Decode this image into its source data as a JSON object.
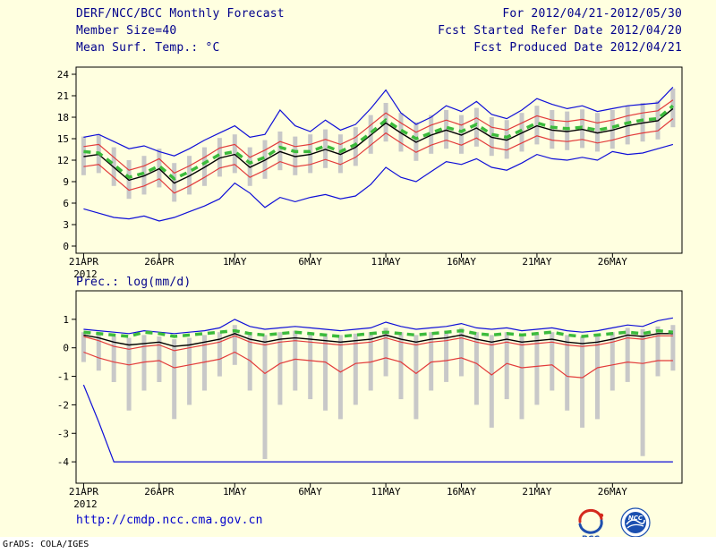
{
  "header": {
    "title_left": "DERF/NCC/BCC Monthly Forecast",
    "member_size": "Member Size=40",
    "for_range": "For 2012/04/21-2012/05/30",
    "fcst_started": "Fcst Started Refer Date 2012/04/20",
    "fcst_produced": "Fcst Produced Date 2012/04/21"
  },
  "footer": {
    "link": "http://cmdp.ncc.cma.gov.cn",
    "grads_credit": "GrADS: COLA/IGES",
    "bcc_logo_text": "BCC",
    "ncc_logo_text": "NCC"
  },
  "colors": {
    "background": "#ffffe0",
    "header_text": "#00008b",
    "link": "#0000cc",
    "envelope_blue": "#0f0fd8",
    "quartile_red": "#e23b3b",
    "mean_black": "#000000",
    "climatology_green": "#3cbb3c",
    "range_bar_gray": "#c8c8c8",
    "frame": "#000000"
  },
  "chart_data": [
    {
      "name": "temperature-forecast-chart",
      "type": "line",
      "title": "Mean Surf. Temp.: °C",
      "x_tick_labels": [
        "21APR",
        "26APR",
        "1MAY",
        "6MAY",
        "11MAY",
        "16MAY",
        "21MAY",
        "26MAY"
      ],
      "x_tick_days": [
        0,
        5,
        10,
        15,
        20,
        25,
        30,
        35
      ],
      "x_year_label": "2012",
      "n_points": 40,
      "xlim": [
        -0.5,
        39.6
      ],
      "ylim": [
        -1,
        25
      ],
      "yticks": [
        0,
        3,
        6,
        9,
        12,
        15,
        18,
        21,
        24
      ],
      "bars": {
        "color": "#c8c8c8",
        "low": [
          9.9,
          10.2,
          8.4,
          6.6,
          7.2,
          8.2,
          6.2,
          7.2,
          8.4,
          9.7,
          10.2,
          8.4,
          9.4,
          10.6,
          9.9,
          10.2,
          10.9,
          10.2,
          11.2,
          12.9,
          14.6,
          13.2,
          11.9,
          12.9,
          13.6,
          12.9,
          13.9,
          12.6,
          12.2,
          13.2,
          14.2,
          13.6,
          13.4,
          13.7,
          13.2,
          13.6,
          14.2,
          14.6,
          14.9,
          16.6
        ],
        "high": [
          15.3,
          15.6,
          13.8,
          12.0,
          12.6,
          13.6,
          11.6,
          12.6,
          13.8,
          15.1,
          15.6,
          13.8,
          14.8,
          16.0,
          15.3,
          15.6,
          16.3,
          15.6,
          16.6,
          18.3,
          20.0,
          18.6,
          17.3,
          18.3,
          19.0,
          18.3,
          19.3,
          18.0,
          17.6,
          18.6,
          19.6,
          19.0,
          18.8,
          19.1,
          18.6,
          19.0,
          19.6,
          20.0,
          20.3,
          22.0
        ]
      },
      "series": [
        {
          "name": "ensemble-max-line",
          "color": "#0f0fd8",
          "width": 1.2,
          "values": [
            15.2,
            15.6,
            14.6,
            13.6,
            14.0,
            13.2,
            12.6,
            13.6,
            14.8,
            15.8,
            16.8,
            15.2,
            15.6,
            19.0,
            16.8,
            16.0,
            17.6,
            16.2,
            17.0,
            19.2,
            21.8,
            18.6,
            17.0,
            18.0,
            19.6,
            18.8,
            20.2,
            18.4,
            17.8,
            19.0,
            20.6,
            19.8,
            19.2,
            19.6,
            18.8,
            19.2,
            19.6,
            19.8,
            20.0,
            22.2
          ]
        },
        {
          "name": "ensemble-min-line",
          "color": "#0f0fd8",
          "width": 1.2,
          "values": [
            5.2,
            4.6,
            4.0,
            3.8,
            4.2,
            3.5,
            4.0,
            4.8,
            5.6,
            6.6,
            8.8,
            7.4,
            5.4,
            6.8,
            6.2,
            6.8,
            7.2,
            6.6,
            7.0,
            8.6,
            11.0,
            9.6,
            9.0,
            10.4,
            11.8,
            11.4,
            12.2,
            11.0,
            10.6,
            11.6,
            12.8,
            12.2,
            12.0,
            12.4,
            12.0,
            13.2,
            12.8,
            13.0,
            13.6,
            14.2
          ]
        },
        {
          "name": "upper-quartile-line",
          "color": "#e23b3b",
          "width": 1.2,
          "values": [
            13.9,
            14.2,
            12.4,
            10.6,
            11.2,
            12.2,
            10.2,
            11.2,
            12.4,
            13.7,
            14.2,
            12.4,
            13.4,
            14.6,
            13.9,
            14.2,
            14.9,
            14.2,
            15.2,
            16.9,
            18.6,
            17.2,
            15.9,
            16.9,
            17.6,
            16.9,
            17.9,
            16.6,
            16.2,
            17.2,
            18.2,
            17.6,
            17.4,
            17.7,
            17.2,
            17.6,
            18.2,
            18.6,
            18.9,
            20.4
          ]
        },
        {
          "name": "lower-quartile-line",
          "color": "#e23b3b",
          "width": 1.2,
          "values": [
            11.1,
            11.4,
            9.6,
            7.8,
            8.4,
            9.4,
            7.4,
            8.4,
            9.6,
            10.9,
            11.4,
            9.6,
            10.6,
            11.8,
            11.1,
            11.4,
            12.1,
            11.4,
            12.4,
            14.1,
            15.8,
            14.4,
            13.1,
            14.1,
            14.8,
            14.1,
            15.1,
            13.8,
            13.4,
            14.4,
            15.4,
            14.8,
            14.6,
            14.9,
            14.4,
            14.8,
            15.4,
            15.8,
            16.1,
            17.8
          ]
        },
        {
          "name": "ensemble-mean-line",
          "color": "#000000",
          "width": 1.4,
          "values": [
            12.5,
            12.8,
            11.0,
            9.2,
            9.8,
            10.8,
            8.8,
            9.8,
            11.0,
            12.3,
            12.8,
            11.0,
            12.0,
            13.2,
            12.5,
            12.8,
            13.5,
            12.8,
            13.8,
            15.5,
            17.2,
            15.8,
            14.5,
            15.5,
            16.2,
            15.5,
            16.5,
            15.2,
            14.8,
            15.8,
            16.8,
            16.2,
            16.0,
            16.3,
            15.8,
            16.2,
            16.8,
            17.2,
            17.5,
            19.2
          ]
        },
        {
          "name": "climatology-dashed-line",
          "color": "#3cbb3c",
          "width": 3.5,
          "dash": "8,6",
          "values": [
            13.2,
            13.0,
            11.4,
            9.6,
            10.2,
            11.2,
            9.4,
            10.4,
            11.6,
            12.8,
            13.2,
            11.6,
            12.4,
            13.8,
            13.2,
            13.2,
            14.0,
            13.2,
            14.2,
            15.8,
            17.6,
            16.2,
            15.0,
            15.8,
            16.6,
            16.0,
            17.0,
            15.6,
            15.2,
            16.2,
            17.2,
            16.6,
            16.4,
            16.6,
            16.2,
            16.6,
            17.2,
            17.6,
            17.8,
            19.6
          ]
        }
      ]
    },
    {
      "name": "precipitation-forecast-chart",
      "type": "line",
      "title": "Prec.: log(mm/d)",
      "x_tick_labels": [
        "21APR",
        "26APR",
        "1MAY",
        "6MAY",
        "11MAY",
        "16MAY",
        "21MAY",
        "26MAY"
      ],
      "x_tick_days": [
        0,
        5,
        10,
        15,
        20,
        25,
        30,
        35
      ],
      "x_year_label": "2012",
      "n_points": 40,
      "xlim": [
        -0.5,
        39.6
      ],
      "ylim": [
        -4.75,
        2.0
      ],
      "yticks": [
        1,
        0,
        -1,
        -2,
        -3,
        -4
      ],
      "bars": {
        "color": "#c8c8c8",
        "low": [
          -0.5,
          -0.8,
          -1.2,
          -2.2,
          -1.5,
          -1.2,
          -2.5,
          -2.0,
          -1.5,
          -1.0,
          -0.6,
          -1.5,
          -3.9,
          -2.0,
          -1.5,
          -1.8,
          -2.2,
          -2.5,
          -2.0,
          -1.5,
          -1.0,
          -1.8,
          -2.5,
          -1.5,
          -1.2,
          -1.0,
          -2.0,
          -2.8,
          -1.8,
          -2.5,
          -2.0,
          -1.5,
          -2.2,
          -2.8,
          -2.5,
          -1.5,
          -1.2,
          -3.8,
          -1.0,
          -0.8
        ],
        "high": [
          0.55,
          0.5,
          0.4,
          0.35,
          0.45,
          0.4,
          0.3,
          0.35,
          0.45,
          0.55,
          0.8,
          0.55,
          0.45,
          0.55,
          0.6,
          0.55,
          0.5,
          0.45,
          0.5,
          0.55,
          0.7,
          0.55,
          0.45,
          0.55,
          0.6,
          0.7,
          0.55,
          0.45,
          0.55,
          0.45,
          0.5,
          0.55,
          0.45,
          0.4,
          0.45,
          0.55,
          0.7,
          0.65,
          0.75,
          0.8
        ]
      },
      "series": [
        {
          "name": "ensemble-max-line",
          "color": "#0f0fd8",
          "width": 1.2,
          "values": [
            0.65,
            0.6,
            0.55,
            0.5,
            0.6,
            0.55,
            0.5,
            0.55,
            0.6,
            0.7,
            1.0,
            0.75,
            0.65,
            0.7,
            0.75,
            0.7,
            0.65,
            0.6,
            0.65,
            0.7,
            0.9,
            0.75,
            0.65,
            0.7,
            0.75,
            0.85,
            0.7,
            0.65,
            0.7,
            0.6,
            0.65,
            0.7,
            0.6,
            0.55,
            0.6,
            0.7,
            0.8,
            0.75,
            0.95,
            1.05
          ]
        },
        {
          "name": "ensemble-min-line",
          "color": "#0f0fd8",
          "width": 1.2,
          "values": [
            -1.3,
            -2.6,
            -4,
            -4,
            -4,
            -4,
            -4,
            -4,
            -4,
            -4,
            -4,
            -4,
            -4,
            -4,
            -4,
            -4,
            -4,
            -4,
            -4,
            -4,
            -4,
            -4,
            -4,
            -4,
            -4,
            -4,
            -4,
            -4,
            -4,
            -4,
            -4,
            -4,
            -4,
            -4,
            -4,
            -4,
            -4,
            -4,
            -4,
            -4
          ]
        },
        {
          "name": "upper-quartile-line",
          "color": "#e23b3b",
          "width": 1.2,
          "values": [
            0.4,
            0.25,
            0.05,
            -0.05,
            0.05,
            0.1,
            -0.1,
            0.0,
            0.1,
            0.2,
            0.42,
            0.2,
            0.1,
            0.2,
            0.25,
            0.2,
            0.15,
            0.1,
            0.15,
            0.2,
            0.35,
            0.2,
            0.1,
            0.2,
            0.25,
            0.35,
            0.2,
            0.1,
            0.2,
            0.1,
            0.15,
            0.2,
            0.1,
            0.05,
            0.1,
            0.2,
            0.35,
            0.3,
            0.42,
            0.42
          ]
        },
        {
          "name": "lower-quartile-line",
          "color": "#e23b3b",
          "width": 1.2,
          "values": [
            -0.15,
            -0.35,
            -0.5,
            -0.6,
            -0.5,
            -0.45,
            -0.7,
            -0.6,
            -0.5,
            -0.4,
            -0.15,
            -0.45,
            -0.9,
            -0.55,
            -0.4,
            -0.45,
            -0.5,
            -0.85,
            -0.55,
            -0.5,
            -0.35,
            -0.5,
            -0.9,
            -0.5,
            -0.45,
            -0.35,
            -0.55,
            -0.95,
            -0.55,
            -0.7,
            -0.65,
            -0.6,
            -1.0,
            -1.05,
            -0.7,
            -0.6,
            -0.5,
            -0.55,
            -0.45,
            -0.45
          ]
        },
        {
          "name": "ensemble-mean-line",
          "color": "#000000",
          "width": 1.4,
          "values": [
            0.45,
            0.35,
            0.2,
            0.1,
            0.15,
            0.2,
            0.05,
            0.1,
            0.2,
            0.3,
            0.5,
            0.3,
            0.2,
            0.3,
            0.35,
            0.3,
            0.25,
            0.2,
            0.25,
            0.3,
            0.45,
            0.3,
            0.2,
            0.3,
            0.35,
            0.45,
            0.3,
            0.2,
            0.3,
            0.2,
            0.25,
            0.3,
            0.2,
            0.15,
            0.2,
            0.3,
            0.45,
            0.4,
            0.5,
            0.5
          ]
        },
        {
          "name": "climatology-dashed-line",
          "color": "#3cbb3c",
          "width": 3.5,
          "dash": "8,6",
          "values": [
            0.55,
            0.5,
            0.45,
            0.4,
            0.55,
            0.5,
            0.4,
            0.45,
            0.5,
            0.55,
            0.6,
            0.5,
            0.45,
            0.5,
            0.55,
            0.5,
            0.45,
            0.4,
            0.45,
            0.5,
            0.55,
            0.5,
            0.45,
            0.5,
            0.55,
            0.6,
            0.5,
            0.45,
            0.5,
            0.45,
            0.5,
            0.55,
            0.45,
            0.4,
            0.45,
            0.5,
            0.55,
            0.5,
            0.6,
            0.55
          ]
        }
      ]
    }
  ]
}
